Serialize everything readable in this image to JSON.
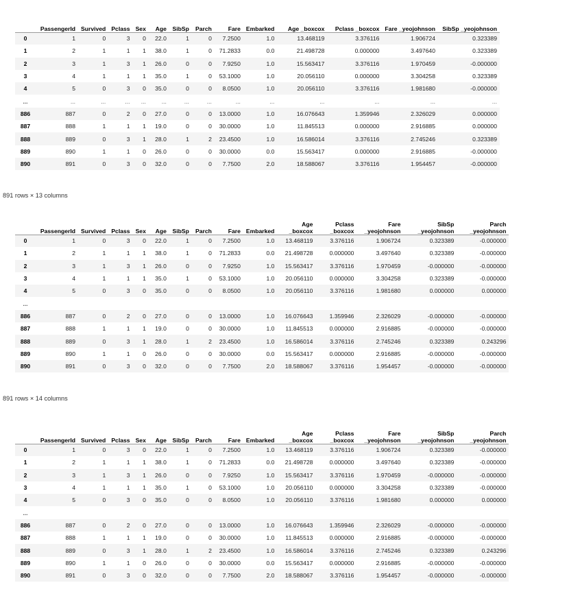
{
  "blocks": [
    {
      "columns": [
        "",
        "PassengerId",
        "Survived",
        "Pclass",
        "Sex",
        "Age",
        "SibSp",
        "Parch",
        "Fare",
        "Embarked",
        "Age _boxcox",
        "Pclass _boxcox",
        "Fare _yeojohnson",
        "SibSp _yeojohnson"
      ],
      "rows": [
        [
          "0",
          "1",
          "0",
          "3",
          "0",
          "22.0",
          "1",
          "0",
          "7.2500",
          "1.0",
          "13.468119",
          "3.376116",
          "1.906724",
          "0.323389"
        ],
        [
          "1",
          "2",
          "1",
          "1",
          "1",
          "38.0",
          "1",
          "0",
          "71.2833",
          "0.0",
          "21.498728",
          "0.000000",
          "3.497640",
          "0.323389"
        ],
        [
          "2",
          "3",
          "1",
          "3",
          "1",
          "26.0",
          "0",
          "0",
          "7.9250",
          "1.0",
          "15.563417",
          "3.376116",
          "1.970459",
          "-0.000000"
        ],
        [
          "3",
          "4",
          "1",
          "1",
          "1",
          "35.0",
          "1",
          "0",
          "53.1000",
          "1.0",
          "20.056110",
          "0.000000",
          "3.304258",
          "0.323389"
        ],
        [
          "4",
          "5",
          "0",
          "3",
          "0",
          "35.0",
          "0",
          "0",
          "8.0500",
          "1.0",
          "20.056110",
          "3.376116",
          "1.981680",
          "-0.000000"
        ],
        [
          "...",
          "...",
          "...",
          "...",
          "...",
          "...",
          "...",
          "...",
          "...",
          "...",
          "...",
          "...",
          "...",
          "..."
        ],
        [
          "886",
          "887",
          "0",
          "2",
          "0",
          "27.0",
          "0",
          "0",
          "13.0000",
          "1.0",
          "16.076643",
          "1.359946",
          "2.326029",
          "0.000000"
        ],
        [
          "887",
          "888",
          "1",
          "1",
          "1",
          "19.0",
          "0",
          "0",
          "30.0000",
          "1.0",
          "11.845513",
          "0.000000",
          "2.916885",
          "0.000000"
        ],
        [
          "888",
          "889",
          "0",
          "3",
          "1",
          "28.0",
          "1",
          "2",
          "23.4500",
          "1.0",
          "16.586014",
          "3.376116",
          "2.745246",
          "0.323389"
        ],
        [
          "889",
          "890",
          "1",
          "1",
          "0",
          "26.0",
          "0",
          "0",
          "30.0000",
          "0.0",
          "15.563417",
          "0.000000",
          "2.916885",
          "-0.000000"
        ],
        [
          "890",
          "891",
          "0",
          "3",
          "0",
          "32.0",
          "0",
          "0",
          "7.7500",
          "2.0",
          "18.588067",
          "3.376116",
          "1.954457",
          "-0.000000"
        ]
      ],
      "shape_note": "891 rows × 13 columns"
    },
    {
      "columns": [
        "",
        "PassengerId",
        "Survived",
        "Pclass",
        "Sex",
        "Age",
        "SibSp",
        "Parch",
        "Fare",
        "Embarked",
        "Age\n_boxcox",
        "Pclass\n_boxcox",
        "Fare\n_yeojohnson",
        "SibSp\n_yeojohnson",
        "Parch\n_yeojohnson"
      ],
      "rows": [
        [
          "0",
          "1",
          "0",
          "3",
          "0",
          "22.0",
          "1",
          "0",
          "7.2500",
          "1.0",
          "13.468119",
          "3.376116",
          "1.906724",
          "0.323389",
          "-0.000000"
        ],
        [
          "1",
          "2",
          "1",
          "1",
          "1",
          "38.0",
          "1",
          "0",
          "71.2833",
          "0.0",
          "21.498728",
          "0.000000",
          "3.497640",
          "0.323389",
          "-0.000000"
        ],
        [
          "2",
          "3",
          "1",
          "3",
          "1",
          "26.0",
          "0",
          "0",
          "7.9250",
          "1.0",
          "15.563417",
          "3.376116",
          "1.970459",
          "-0.000000",
          "-0.000000"
        ],
        [
          "3",
          "4",
          "1",
          "1",
          "1",
          "35.0",
          "1",
          "0",
          "53.1000",
          "1.0",
          "20.056110",
          "0.000000",
          "3.304258",
          "0.323389",
          "-0.000000"
        ],
        [
          "4",
          "5",
          "0",
          "3",
          "0",
          "35.0",
          "0",
          "0",
          "8.0500",
          "1.0",
          "20.056110",
          "3.376116",
          "1.981680",
          "0.000000",
          "0.000000"
        ],
        [
          "...",
          "",
          "",
          "",
          "",
          "",
          "",
          "",
          "",
          "",
          "",
          "",
          "",
          "",
          ""
        ],
        [
          "886",
          "887",
          "0",
          "2",
          "0",
          "27.0",
          "0",
          "0",
          "13.0000",
          "1.0",
          "16.076643",
          "1.359946",
          "2.326029",
          "-0.000000",
          "-0.000000"
        ],
        [
          "887",
          "888",
          "1",
          "1",
          "1",
          "19.0",
          "0",
          "0",
          "30.0000",
          "1.0",
          "11.845513",
          "0.000000",
          "2.916885",
          "-0.000000",
          "-0.000000"
        ],
        [
          "888",
          "889",
          "0",
          "3",
          "1",
          "28.0",
          "1",
          "2",
          "23.4500",
          "1.0",
          "16.586014",
          "3.376116",
          "2.745246",
          "0.323389",
          "0.243296"
        ],
        [
          "889",
          "890",
          "1",
          "1",
          "0",
          "26.0",
          "0",
          "0",
          "30.0000",
          "0.0",
          "15.563417",
          "0.000000",
          "2.916885",
          "-0.000000",
          "-0.000000"
        ],
        [
          "890",
          "891",
          "0",
          "3",
          "0",
          "32.0",
          "0",
          "0",
          "7.7500",
          "2.0",
          "18.588067",
          "3.376116",
          "1.954457",
          "-0.000000",
          "-0.000000"
        ]
      ],
      "shape_note": "891 rows × 14 columns"
    },
    {
      "columns": [
        "",
        "PassengerId",
        "Survived",
        "Pclass",
        "Sex",
        "Age",
        "SibSp",
        "Parch",
        "Fare",
        "Embarked",
        "Age\n_boxcox",
        "Pclass\n_boxcox",
        "Fare\n_yeojohnson",
        "SibSp\n_yeojohnson",
        "Parch\n_yeojohnson"
      ],
      "rows": [
        [
          "0",
          "1",
          "0",
          "3",
          "0",
          "22.0",
          "1",
          "0",
          "7.2500",
          "1.0",
          "13.468119",
          "3.376116",
          "1.906724",
          "0.323389",
          "-0.000000"
        ],
        [
          "1",
          "2",
          "1",
          "1",
          "1",
          "38.0",
          "1",
          "0",
          "71.2833",
          "0.0",
          "21.498728",
          "0.000000",
          "3.497640",
          "0.323389",
          "-0.000000"
        ],
        [
          "2",
          "3",
          "1",
          "3",
          "1",
          "26.0",
          "0",
          "0",
          "7.9250",
          "1.0",
          "15.563417",
          "3.376116",
          "1.970459",
          "-0.000000",
          "-0.000000"
        ],
        [
          "3",
          "4",
          "1",
          "1",
          "1",
          "35.0",
          "1",
          "0",
          "53.1000",
          "1.0",
          "20.056110",
          "0.000000",
          "3.304258",
          "0.323389",
          "-0.000000"
        ],
        [
          "4",
          "5",
          "0",
          "3",
          "0",
          "35.0",
          "0",
          "0",
          "8.0500",
          "1.0",
          "20.056110",
          "3.376116",
          "1.981680",
          "0.000000",
          "0.000000"
        ],
        [
          "...",
          "",
          "",
          "",
          "",
          "",
          "",
          "",
          "",
          "",
          "",
          "",
          "",
          "",
          ""
        ],
        [
          "886",
          "887",
          "0",
          "2",
          "0",
          "27.0",
          "0",
          "0",
          "13.0000",
          "1.0",
          "16.076643",
          "1.359946",
          "2.326029",
          "-0.000000",
          "-0.000000"
        ],
        [
          "887",
          "888",
          "1",
          "1",
          "1",
          "19.0",
          "0",
          "0",
          "30.0000",
          "1.0",
          "11.845513",
          "0.000000",
          "2.916885",
          "-0.000000",
          "-0.000000"
        ],
        [
          "888",
          "889",
          "0",
          "3",
          "1",
          "28.0",
          "1",
          "2",
          "23.4500",
          "1.0",
          "16.586014",
          "3.376116",
          "2.745246",
          "0.323389",
          "0.243296"
        ],
        [
          "889",
          "890",
          "1",
          "1",
          "0",
          "26.0",
          "0",
          "0",
          "30.0000",
          "0.0",
          "15.563417",
          "0.000000",
          "2.916885",
          "-0.000000",
          "-0.000000"
        ],
        [
          "890",
          "891",
          "0",
          "3",
          "0",
          "32.0",
          "0",
          "0",
          "7.7500",
          "2.0",
          "18.588067",
          "3.376116",
          "1.954457",
          "-0.000000",
          "-0.000000"
        ]
      ],
      "shape_note": ""
    }
  ]
}
